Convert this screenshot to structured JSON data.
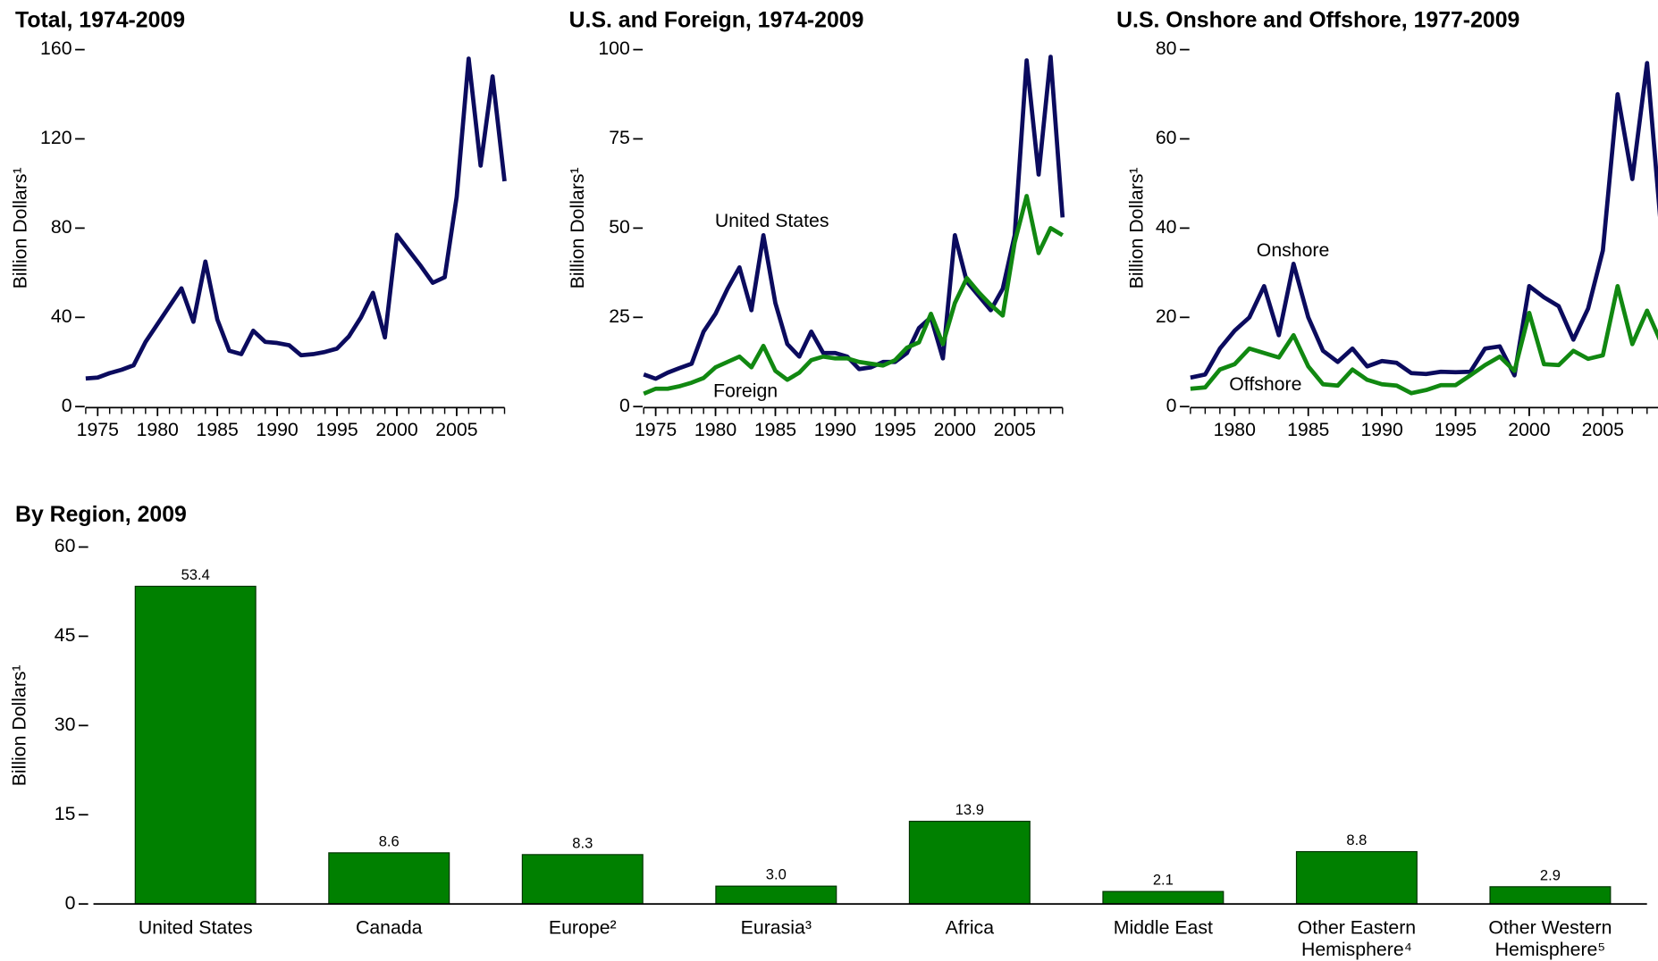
{
  "chart_data": [
    {
      "type": "line",
      "title": "Total, 1974-2009",
      "ylabel": "Billion Dollars¹",
      "x": [
        1974,
        1975,
        1976,
        1977,
        1978,
        1979,
        1980,
        1981,
        1982,
        1983,
        1984,
        1985,
        1986,
        1987,
        1988,
        1989,
        1990,
        1991,
        1992,
        1993,
        1994,
        1995,
        1996,
        1997,
        1998,
        1999,
        2000,
        2001,
        2002,
        2003,
        2004,
        2005,
        2006,
        2007,
        2008,
        2009
      ],
      "series": [
        {
          "color": "#0b0b5e",
          "values": [
            12.6,
            13,
            15,
            16.5,
            18.5,
            29,
            37,
            45,
            53,
            38,
            65,
            39,
            25,
            23.5,
            34,
            29,
            28.5,
            27.5,
            23,
            23.5,
            24.5,
            26,
            31.5,
            40,
            51,
            31,
            77,
            70,
            63,
            55.5,
            58,
            94,
            156,
            108,
            148,
            101
          ]
        }
      ],
      "xlim": [
        1974,
        2009
      ],
      "xticks": [
        1975,
        1980,
        1985,
        1990,
        1995,
        2000,
        2005
      ],
      "ylim": [
        0,
        160
      ],
      "yticks": [
        0,
        40,
        80,
        120,
        160
      ]
    },
    {
      "type": "line",
      "title": "U.S. and Foreign, 1974-2009",
      "ylabel": "Billion Dollars¹",
      "x": [
        1974,
        1975,
        1976,
        1977,
        1978,
        1979,
        1980,
        1981,
        1982,
        1983,
        1984,
        1985,
        1986,
        1987,
        1988,
        1989,
        1990,
        1991,
        1992,
        1993,
        1994,
        1995,
        1996,
        1997,
        1998,
        1999,
        2000,
        2001,
        2002,
        2003,
        2004,
        2005,
        2006,
        2007,
        2008,
        2009
      ],
      "series": [
        {
          "name": "United States",
          "color": "#0b0b5e",
          "values": [
            9,
            7.8,
            9.5,
            10.8,
            12,
            21,
            26,
            33,
            39,
            27,
            48,
            29,
            17.5,
            14,
            21,
            15,
            15,
            14,
            10.5,
            11,
            12.5,
            12.5,
            15,
            22,
            25,
            13.5,
            48,
            35,
            31,
            27,
            33,
            48,
            97,
            65,
            98,
            53
          ]
        },
        {
          "name": "Foreign",
          "color": "#118811",
          "values": [
            3.6,
            5,
            5,
            5.7,
            6.7,
            8,
            11,
            12.5,
            14,
            11,
            17,
            10,
            7.5,
            9.5,
            13,
            14,
            13.5,
            13.5,
            12.5,
            12,
            11.5,
            13,
            16.5,
            18,
            26,
            17.5,
            29,
            36,
            32,
            28.5,
            25.5,
            46,
            59,
            43,
            50,
            48
          ]
        }
      ],
      "xlim": [
        1974,
        2009
      ],
      "xticks": [
        1975,
        1980,
        1985,
        1990,
        1995,
        2000,
        2005
      ],
      "ylim": [
        0,
        100
      ],
      "yticks": [
        0,
        25,
        50,
        75,
        100
      ]
    },
    {
      "type": "line",
      "title": "U.S. Onshore and Offshore, 1977-2009",
      "ylabel": "Billion Dollars¹",
      "x": [
        1977,
        1978,
        1979,
        1980,
        1981,
        1982,
        1983,
        1984,
        1985,
        1986,
        1987,
        1988,
        1989,
        1990,
        1991,
        1992,
        1993,
        1994,
        1995,
        1996,
        1997,
        1998,
        1999,
        2000,
        2001,
        2002,
        2003,
        2004,
        2005,
        2006,
        2007,
        2008,
        2009
      ],
      "series": [
        {
          "name": "Onshore",
          "color": "#0b0b5e",
          "values": [
            6.5,
            7.2,
            13,
            17,
            20,
            27,
            16,
            32,
            20,
            12.5,
            10,
            13,
            9,
            10.2,
            9.8,
            7.5,
            7.3,
            7.8,
            7.7,
            7.8,
            13,
            13.5,
            7,
            27,
            24.5,
            22.5,
            15,
            22,
            35,
            70,
            51,
            77,
            38
          ]
        },
        {
          "name": "Offshore",
          "color": "#118811",
          "values": [
            4,
            4.3,
            8.3,
            9.5,
            13,
            12,
            11,
            16,
            9,
            5,
            4.7,
            8.3,
            6,
            5,
            4.7,
            3,
            3.7,
            4.8,
            4.8,
            7,
            9.3,
            11.2,
            8,
            21,
            9.5,
            9.3,
            12.5,
            10.7,
            11.5,
            27,
            14,
            21.5,
            14
          ]
        }
      ],
      "xlim": [
        1977,
        2009
      ],
      "xticks": [
        1980,
        1985,
        1990,
        1995,
        2000,
        2005
      ],
      "ylim": [
        0,
        80
      ],
      "yticks": [
        0,
        20,
        40,
        60,
        80
      ]
    },
    {
      "type": "bar",
      "title": "By Region, 2009",
      "ylabel": "Billion Dollars¹",
      "categories": [
        "United States",
        "Canada",
        "Europe²",
        "Eurasia³",
        "Africa",
        "Middle East",
        "Other Eastern Hemisphere⁴",
        "Other Western Hemisphere⁵"
      ],
      "values": [
        53.4,
        8.6,
        8.3,
        3.0,
        13.9,
        2.1,
        8.8,
        2.9
      ],
      "value_labels": [
        "53.4",
        "8.6",
        "8.3",
        "3.0",
        "13.9",
        "2.1",
        "8.8",
        "2.9"
      ],
      "color": "#008000",
      "ylim": [
        0,
        60
      ],
      "yticks": [
        0,
        15,
        30,
        45,
        60
      ]
    }
  ]
}
